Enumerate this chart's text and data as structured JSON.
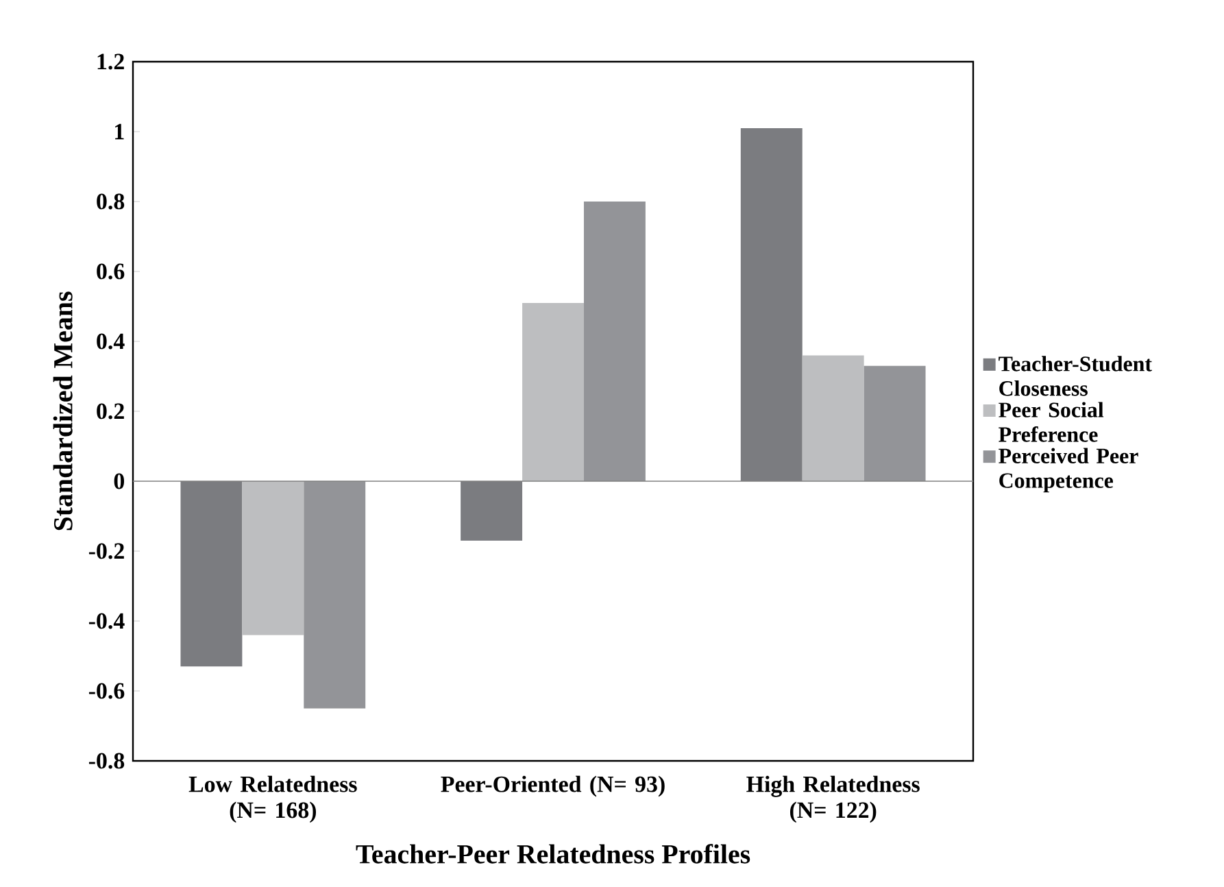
{
  "chart_data": {
    "type": "bar",
    "xlabel": "Teacher-Peer Relatedness Profiles",
    "ylabel": "Standardized Means",
    "categories": [
      "Low Relatedness (N= 168)",
      "Peer-Oriented (N= 93)",
      "High Relatedness (N= 122)"
    ],
    "series": [
      {
        "name": "Teacher-Student Closeness",
        "color": "#7b7c80",
        "values": [
          -0.53,
          -0.17,
          1.01
        ]
      },
      {
        "name": "Peer Social Preference",
        "color": "#bdbec0",
        "values": [
          -0.44,
          0.51,
          0.36
        ]
      },
      {
        "name": "Perceived Peer Competence",
        "color": "#939498",
        "values": [
          -0.65,
          0.8,
          0.33
        ]
      }
    ],
    "ylim": [
      -0.8,
      1.2
    ],
    "yticks": [
      -0.8,
      -0.6,
      -0.4,
      -0.2,
      0,
      0.2,
      0.4,
      0.6,
      0.8,
      1,
      1.2
    ],
    "ref_lines": [
      {
        "axis": "y",
        "value": 0,
        "color": "#808080"
      }
    ],
    "grid": false,
    "legend": "right"
  }
}
